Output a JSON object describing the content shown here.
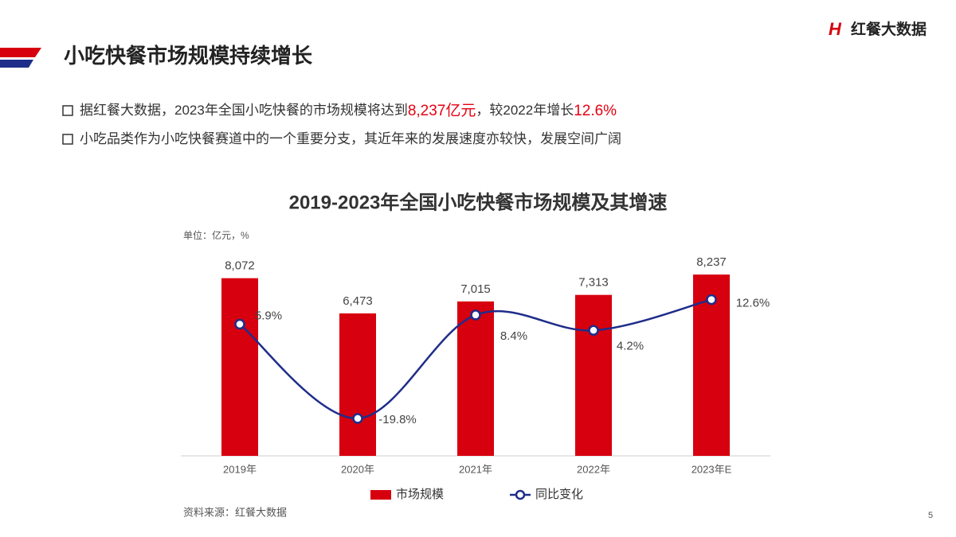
{
  "header": {
    "title": "小吃快餐市场规模持续增长",
    "logo": "红餐大数据"
  },
  "bullets": [
    [
      "据红餐大数据，2023年全国小吃快餐的市场规模将达到",
      "8,237亿元",
      "，较2022年增长",
      "12.6%"
    ],
    [
      "小吃品类作为小吃快餐赛道中的一个重要分支，其近年来的发展速度亦较快，发展空间广阔"
    ]
  ],
  "chart_data": {
    "type": "bar_line",
    "title": "2019-2023年全国小吃快餐市场规模及其增速",
    "unit_label": "单位：亿元，%",
    "categories": [
      "2019年",
      "2020年",
      "2021年",
      "2022年",
      "2023年E"
    ],
    "ylim": [
      0,
      9000
    ],
    "y2lim": [
      -30,
      24
    ],
    "series": [
      {
        "name": "市场规模",
        "color": "#d7000f",
        "values": [
          8072,
          6473,
          7015,
          7313,
          8237
        ],
        "value_labels": [
          "8,072",
          "6,473",
          "7,015",
          "7,313",
          "8,237"
        ]
      },
      {
        "name": "同比变化",
        "color": "#1f2d8a",
        "axis": "y2",
        "values": [
          5.9,
          -19.8,
          8.4,
          4.2,
          12.6
        ],
        "value_labels": [
          "5.9%",
          "-19.8%",
          "8.4%",
          "4.2%",
          "12.6%"
        ]
      }
    ]
  },
  "source": "资料来源：红餐大数据",
  "page_number": "5"
}
